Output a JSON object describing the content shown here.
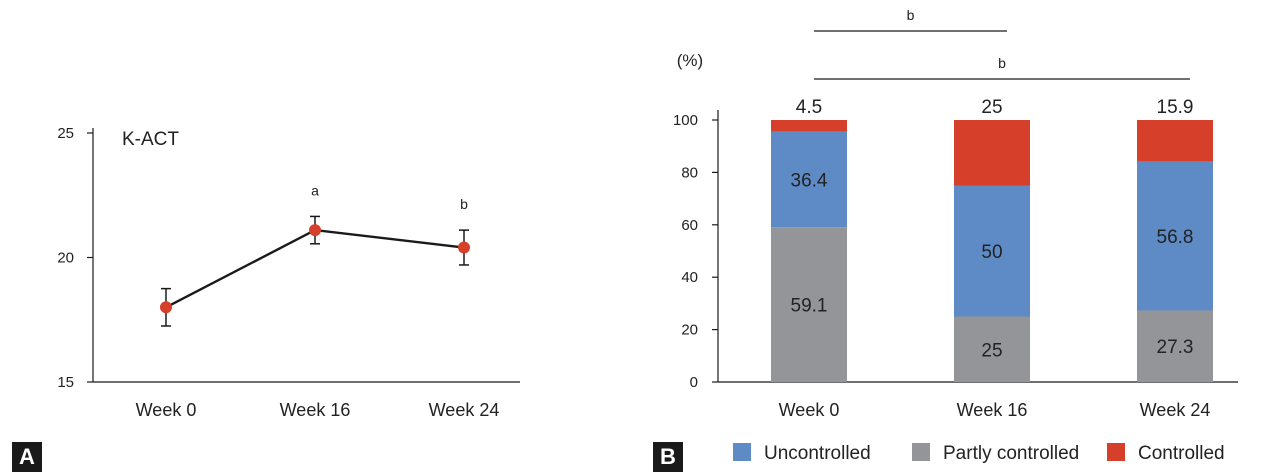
{
  "panel_labels": [
    "A",
    "B"
  ],
  "chart_data": [
    {
      "type": "line",
      "title": "K-ACT",
      "categories": [
        "Week 0",
        "Week 16",
        "Week 24"
      ],
      "values": [
        18.0,
        21.1,
        20.4
      ],
      "error_bars": [
        0.75,
        0.55,
        0.7
      ],
      "annotations": [
        "",
        "a",
        "b"
      ],
      "ylim": [
        15,
        25
      ],
      "yticks": [
        15,
        20,
        25
      ],
      "grid": false,
      "colors": {
        "marker": "#d6402b",
        "line": "#1a1a1a"
      }
    },
    {
      "type": "bar",
      "stacked": true,
      "ylabel": "(%)",
      "categories": [
        "Week 0",
        "Week 16",
        "Week 24"
      ],
      "series": [
        {
          "name": "Partly controlled",
          "values": [
            59.1,
            25,
            27.3
          ],
          "color": "#939598"
        },
        {
          "name": "Uncontrolled",
          "values": [
            36.4,
            50,
            56.8
          ],
          "color": "#5e8ac5"
        },
        {
          "name": "Controlled",
          "values": [
            4.5,
            25,
            15.9
          ],
          "color": "#d6402b"
        }
      ],
      "ylim": [
        0,
        100
      ],
      "yticks": [
        0,
        20,
        40,
        60,
        80,
        100
      ],
      "legend": {
        "position": "bottom",
        "order": [
          "Uncontrolled",
          "Partly controlled",
          "Controlled"
        ]
      },
      "significance": [
        {
          "from": "Week 0",
          "to": "Week 16",
          "label": "b"
        },
        {
          "from": "Week 0",
          "to": "Week 24",
          "label": "b"
        }
      ],
      "grid": false
    }
  ]
}
